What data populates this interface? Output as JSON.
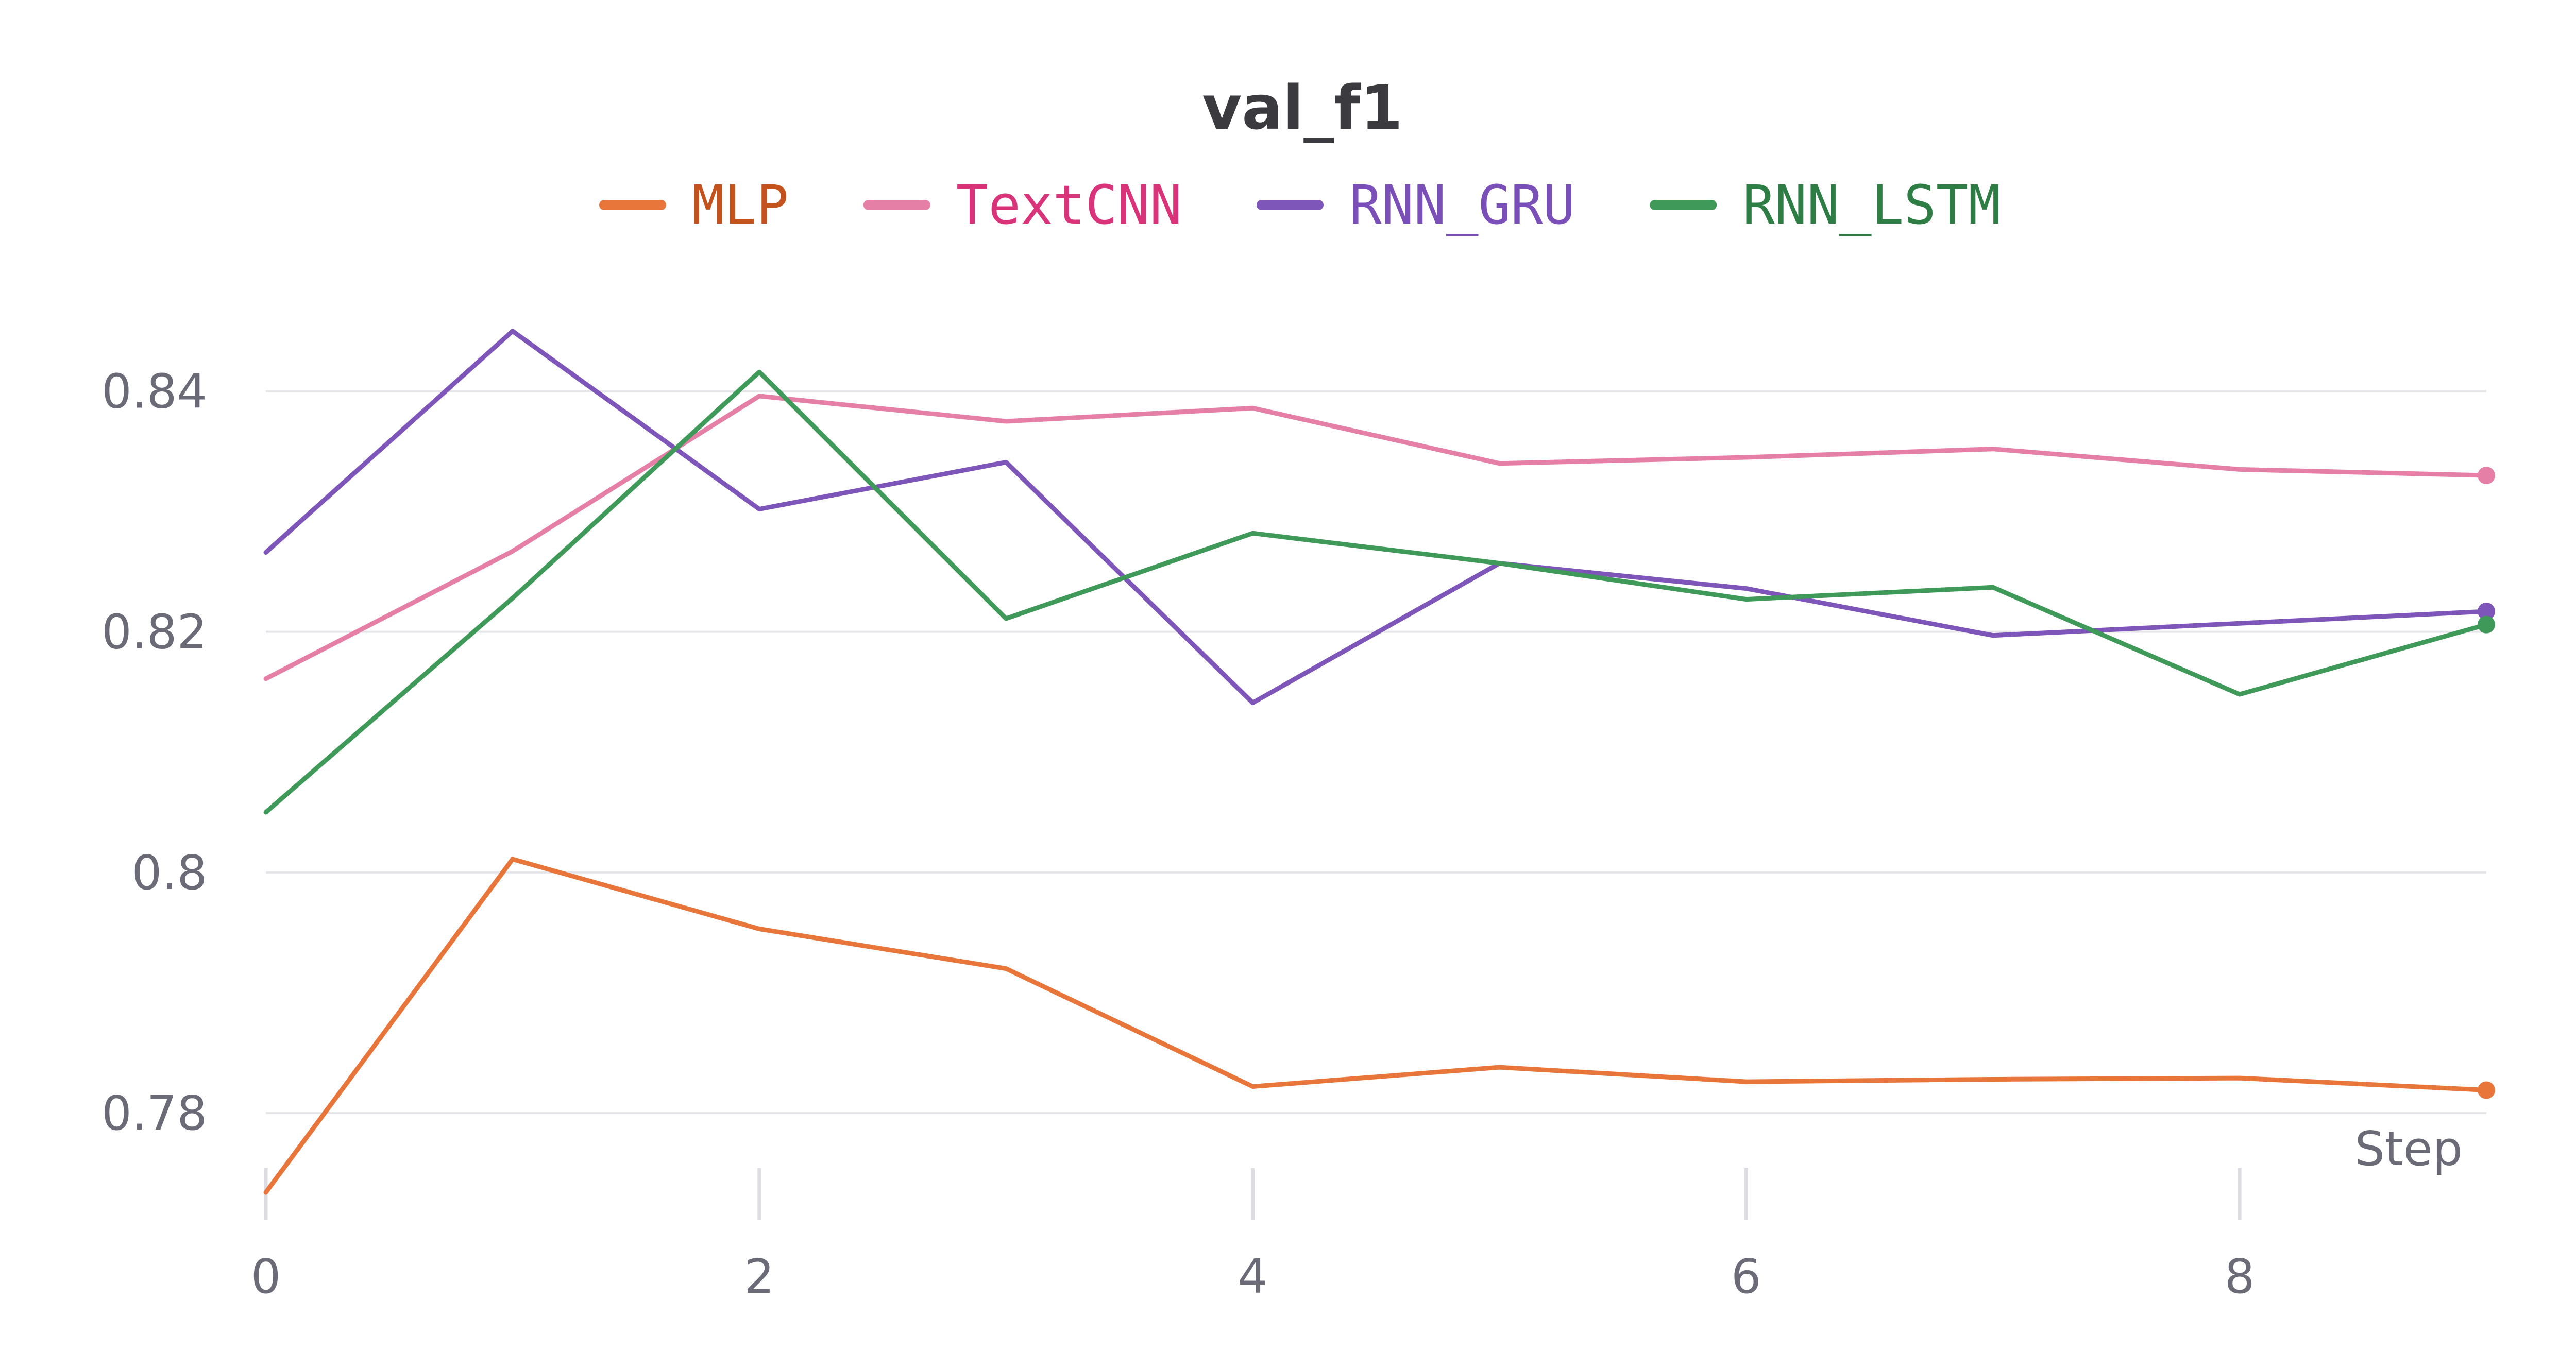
{
  "chart_data": {
    "type": "line",
    "title": "val_f1",
    "xlabel": "Step",
    "ylabel": "",
    "x": [
      0,
      1,
      2,
      3,
      4,
      5,
      6,
      7,
      8,
      9
    ],
    "xlim": [
      0,
      9
    ],
    "ylim": [
      0.7734,
      0.8524
    ],
    "x_ticks": [
      0,
      2,
      4,
      6,
      8
    ],
    "y_ticks": [
      0.78,
      0.8,
      0.82,
      0.84
    ],
    "y_tick_labels": [
      "0.78",
      "0.8",
      "0.82",
      "0.84"
    ],
    "grid": "horizontal",
    "legend_position": "top-center",
    "series": [
      {
        "name": "MLP",
        "color": "#e8753a",
        "label_color": "#c4521d",
        "values": [
          0.7734,
          0.8011,
          0.7953,
          0.792,
          0.7822,
          0.7838,
          0.7826,
          0.7828,
          0.7829,
          0.7819
        ]
      },
      {
        "name": "TextCNN",
        "color": "#e57fa6",
        "label_color": "#d9347a",
        "values": [
          0.8161,
          0.8267,
          0.8396,
          0.8375,
          0.8386,
          0.834,
          0.8345,
          0.8352,
          0.8335,
          0.833
        ]
      },
      {
        "name": "RNN_GRU",
        "color": "#7e55b8",
        "label_color": "#7a4fb7",
        "values": [
          0.8266,
          0.845,
          0.8302,
          0.8341,
          0.8141,
          0.8257,
          0.8236,
          0.8197,
          0.8207,
          0.8217
        ]
      },
      {
        "name": "RNN_LSTM",
        "color": "#3f9a5a",
        "label_color": "#2e7d45",
        "values": [
          0.805,
          0.8228,
          0.8416,
          0.8211,
          0.8282,
          0.8257,
          0.8227,
          0.8237,
          0.8148,
          0.8206
        ]
      }
    ]
  }
}
